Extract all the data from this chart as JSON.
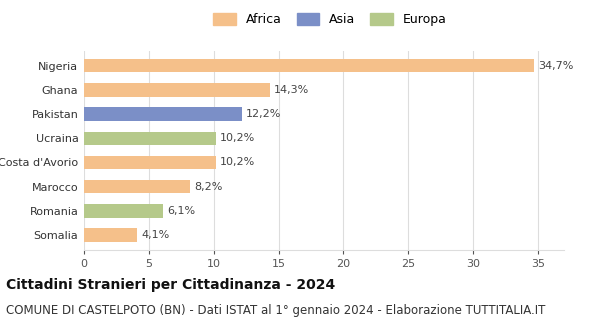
{
  "countries": [
    "Nigeria",
    "Ghana",
    "Pakistan",
    "Ucraina",
    "Costa d'Avorio",
    "Marocco",
    "Romania",
    "Somalia"
  ],
  "values": [
    34.7,
    14.3,
    12.2,
    10.2,
    10.2,
    8.2,
    6.1,
    4.1
  ],
  "labels": [
    "34,7%",
    "14,3%",
    "12,2%",
    "10,2%",
    "10,2%",
    "8,2%",
    "6,1%",
    "4,1%"
  ],
  "continent": [
    "Africa",
    "Africa",
    "Asia",
    "Europa",
    "Africa",
    "Africa",
    "Europa",
    "Africa"
  ],
  "colors": {
    "Africa": "#F5C08A",
    "Asia": "#7B8FC7",
    "Europa": "#B5C98A"
  },
  "legend_order": [
    "Africa",
    "Asia",
    "Europa"
  ],
  "xlim": [
    0,
    37
  ],
  "xticks": [
    0,
    5,
    10,
    15,
    20,
    25,
    30,
    35
  ],
  "title": "Cittadini Stranieri per Cittadinanza - 2024",
  "subtitle": "COMUNE DI CASTELPOTO (BN) - Dati ISTAT al 1° gennaio 2024 - Elaborazione TUTTITALIA.IT",
  "title_fontsize": 10,
  "subtitle_fontsize": 8.5,
  "label_fontsize": 8,
  "tick_fontsize": 8,
  "legend_fontsize": 9,
  "bar_height": 0.55,
  "background_color": "#ffffff",
  "grid_color": "#dddddd"
}
